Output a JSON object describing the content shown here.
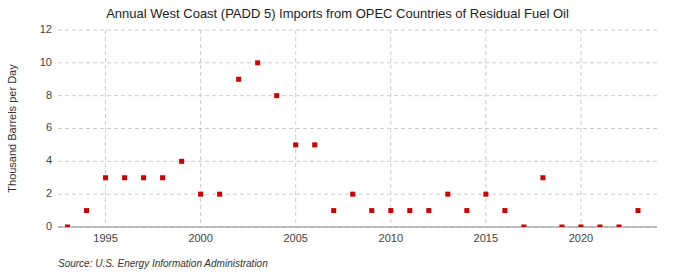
{
  "chart_data": {
    "type": "scatter",
    "title": "Annual West Coast (PADD 5) Imports from OPEC Countries of Residual Fuel Oil",
    "y_label": "Thousand Barrels per Day",
    "source": "Source: U.S. Energy Information Administration",
    "x": [
      1993,
      1994,
      1995,
      1996,
      1997,
      1998,
      1999,
      2000,
      2001,
      2002,
      2003,
      2004,
      2005,
      2006,
      2007,
      2008,
      2009,
      2010,
      2011,
      2012,
      2013,
      2014,
      2015,
      2016,
      2017,
      2018,
      2019,
      2020,
      2021,
      2022,
      2023
    ],
    "values": [
      0,
      1,
      3,
      3,
      3,
      3,
      4,
      2,
      2,
      9,
      10,
      8,
      5,
      5,
      1,
      2,
      1,
      1,
      1,
      1,
      2,
      1,
      2,
      1,
      0,
      3,
      0,
      0,
      0,
      0,
      1
    ],
    "color": "#cc0000",
    "marker": "square",
    "xlim": [
      1992.5,
      2024
    ],
    "xticks": [
      1995,
      2000,
      2005,
      2010,
      2015,
      2020
    ],
    "ylim": [
      0,
      12
    ],
    "yticks": [
      0,
      2,
      4,
      6,
      8,
      10,
      12
    ],
    "grid": true
  }
}
